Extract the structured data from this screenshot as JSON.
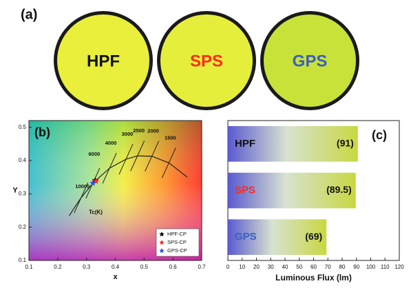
{
  "photo_panel": {
    "label": "(a)",
    "samples": [
      "HPF",
      "SPS",
      "GPS"
    ],
    "text_colors": [
      "#111111",
      "#ff2a1a",
      "#3a5fbf"
    ],
    "disc_colors": [
      "#e9ef3a",
      "#e6ee3c",
      "#c8e23a"
    ]
  },
  "chart_data": [
    {
      "type": "scatter",
      "label": "(b)",
      "x_label": "x",
      "y_label": "Y",
      "xlim": [
        0.1,
        0.7
      ],
      "xticks": [
        0.1,
        0.2,
        0.3,
        0.4,
        0.5,
        0.6,
        0.7
      ],
      "ylim": [
        0.1,
        0.52
      ],
      "yticks": [
        0.1,
        0.2,
        0.3,
        0.4,
        0.5
      ],
      "series": [
        {
          "name": "HPF-CP",
          "color": "#000000",
          "x": [
            0.33
          ],
          "values": [
            0.34
          ]
        },
        {
          "name": "SPS-CP",
          "color": "#ff2a1a",
          "x": [
            0.333
          ],
          "values": [
            0.338
          ]
        },
        {
          "name": "GPS-CP",
          "color": "#3050e0",
          "x": [
            0.322
          ],
          "values": [
            0.332
          ]
        }
      ],
      "locus": {
        "x": [
          0.24,
          0.253,
          0.281,
          0.322,
          0.38,
          0.437,
          0.477,
          0.527,
          0.586,
          0.65
        ],
        "y": [
          0.234,
          0.252,
          0.288,
          0.332,
          0.377,
          0.404,
          0.414,
          0.413,
          0.393,
          0.35
        ]
      },
      "locus_label": "Tc(K)",
      "isotherms": [
        {
          "label": "10000",
          "x": 0.281,
          "y": 0.288
        },
        {
          "label": "6000",
          "x": 0.322,
          "y": 0.332
        },
        {
          "label": "4000",
          "x": 0.38,
          "y": 0.377
        },
        {
          "label": "3000",
          "x": 0.437,
          "y": 0.404
        },
        {
          "label": "2500",
          "x": 0.477,
          "y": 0.414
        },
        {
          "label": "2000",
          "x": 0.527,
          "y": 0.413
        },
        {
          "label": "1500",
          "x": 0.586,
          "y": 0.393
        }
      ],
      "legend": "lower right"
    },
    {
      "type": "hbar",
      "label": "(c)",
      "x_label": "Luminous Flux (lm)",
      "categories": [
        "HPF",
        "SPS",
        "GPS"
      ],
      "label_colors": [
        "#111111",
        "#ff2a1a",
        "#3a5fbf"
      ],
      "values": [
        91,
        89.5,
        69
      ],
      "value_labels": [
        "(91)",
        "(89.5)",
        "(69)"
      ],
      "xlim": [
        0,
        120
      ],
      "xticks": [
        0,
        10,
        20,
        30,
        40,
        50,
        60,
        70,
        80,
        90,
        100,
        110,
        120
      ]
    }
  ]
}
